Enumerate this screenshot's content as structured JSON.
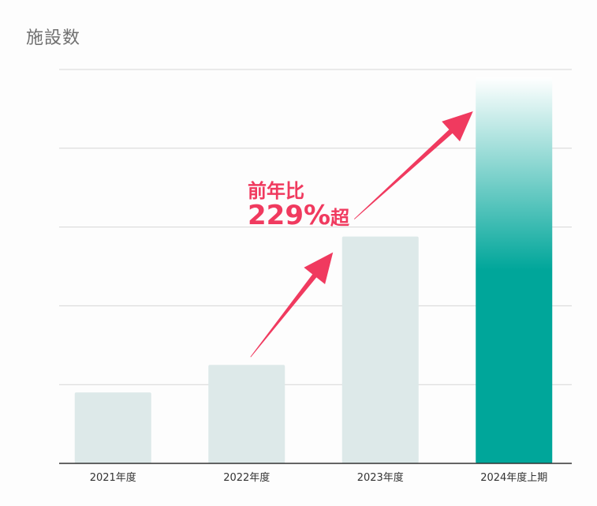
{
  "chart_data": {
    "type": "bar",
    "title": "施設数",
    "categories": [
      "2021年度",
      "2022年度",
      "2023年度",
      "2024年度上期"
    ],
    "values": [
      0.9,
      1.25,
      2.88,
      4.9
    ],
    "ylim": [
      0,
      5
    ],
    "grid": true,
    "highlight_index": 3,
    "annotation": {
      "line1": "前年比",
      "value": "229%",
      "suffix": "超"
    }
  },
  "colors": {
    "bar": "#dde9e9",
    "highlight": "#00a69a",
    "accent": "#f03a5f",
    "grid": "#d6d6d6",
    "axis": "#333333"
  }
}
